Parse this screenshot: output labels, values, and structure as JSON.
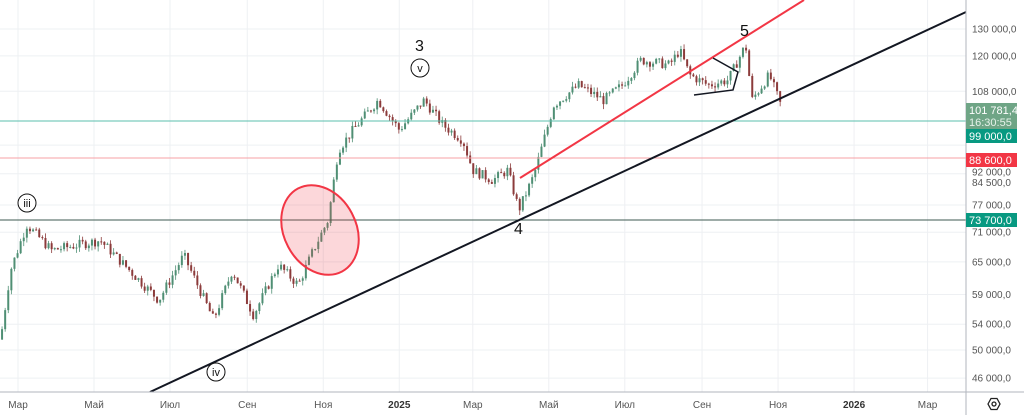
{
  "chart_data": {
    "type": "candlestick",
    "scale": "log",
    "grid": true,
    "ylim": [
      44500,
      140000
    ],
    "x_range": [
      "2024-02-16",
      "2026-04-20"
    ],
    "x_tick_labels": [
      {
        "date": "2024-03-01",
        "label": "Мар"
      },
      {
        "date": "2024-05-01",
        "label": "Май"
      },
      {
        "date": "2024-07-01",
        "label": "Июл"
      },
      {
        "date": "2024-09-01",
        "label": "Сен"
      },
      {
        "date": "2024-11-01",
        "label": "Ноя"
      },
      {
        "date": "2025-01-01",
        "label": "2025",
        "bold": true
      },
      {
        "date": "2025-03-01",
        "label": "Мар"
      },
      {
        "date": "2025-05-01",
        "label": "Май"
      },
      {
        "date": "2025-07-01",
        "label": "Июл"
      },
      {
        "date": "2025-09-01",
        "label": "Сен"
      },
      {
        "date": "2025-11-01",
        "label": "Ноя"
      },
      {
        "date": "2026-01-01",
        "label": "2026",
        "bold": true
      },
      {
        "date": "2026-03-01",
        "label": "Мар"
      }
    ],
    "y_tick_labels": [
      {
        "value": 130000,
        "label": "130 000,0"
      },
      {
        "value": 120000,
        "label": "120 000,0"
      },
      {
        "value": 108000,
        "label": "108 000,0"
      },
      {
        "value": 92000,
        "label": "92 000,0"
      },
      {
        "value": 84500,
        "label": "84 500,0"
      },
      {
        "value": 77000,
        "label": "77 000,0"
      },
      {
        "value": 71000,
        "label": "71 000,0"
      },
      {
        "value": 65000,
        "label": "65 000,0"
      },
      {
        "value": 59000,
        "label": "59 000,0"
      },
      {
        "value": 54000,
        "label": "54 000,0"
      },
      {
        "value": 50000,
        "label": "50 000,0"
      },
      {
        "value": 46000,
        "label": "46 000,0"
      }
    ],
    "price_path": [
      [
        "2024-02-16",
        51600
      ],
      [
        "2024-02-24",
        63400
      ],
      [
        "2024-03-08",
        72600
      ],
      [
        "2024-03-28",
        67300
      ],
      [
        "2024-05-06",
        69300
      ],
      [
        "2024-06-22",
        58000
      ],
      [
        "2024-07-12",
        66300
      ],
      [
        "2024-08-05",
        54700
      ],
      [
        "2024-08-20",
        63400
      ],
      [
        "2024-09-06",
        55500
      ],
      [
        "2024-09-26",
        64400
      ],
      [
        "2024-10-12",
        60700
      ],
      [
        "2024-10-24",
        67300
      ],
      [
        "2024-11-05",
        73700
      ],
      [
        "2024-11-13",
        90700
      ],
      [
        "2024-11-25",
        96300
      ],
      [
        "2024-12-15",
        105200
      ],
      [
        "2025-01-01",
        96300
      ],
      [
        "2025-01-21",
        105200
      ],
      [
        "2025-02-05",
        97700
      ],
      [
        "2025-02-21",
        93400
      ],
      [
        "2025-03-01",
        85400
      ],
      [
        "2025-03-17",
        82900
      ],
      [
        "2025-03-29",
        85400
      ],
      [
        "2025-04-07",
        75900
      ],
      [
        "2025-04-19",
        84100
      ],
      [
        "2025-05-05",
        103700
      ],
      [
        "2025-05-25",
        110000
      ],
      [
        "2025-06-14",
        105200
      ],
      [
        "2025-06-29",
        110000
      ],
      [
        "2025-07-14",
        118500
      ],
      [
        "2025-08-06",
        116800
      ],
      [
        "2025-08-14",
        122100
      ],
      [
        "2025-08-22",
        113400
      ],
      [
        "2025-09-06",
        110000
      ],
      [
        "2025-09-22",
        111700
      ],
      [
        "2025-10-06",
        124000
      ],
      [
        "2025-10-11",
        105200
      ],
      [
        "2025-10-25",
        113400
      ],
      [
        "2025-11-05",
        101781.4
      ]
    ],
    "colors": {
      "up": "#4f8f74",
      "down": "#8c3b3b",
      "grid": "#eef0f3",
      "axis": "#b2b5be"
    },
    "horizontal_levels": [
      {
        "value": 99000,
        "label": "99 000,0",
        "color": "#089981",
        "line_color": "#5bbfae"
      },
      {
        "value": 88600,
        "label": "88 600,0",
        "color": "#f23645",
        "line_color": "#f7a0a6"
      },
      {
        "value": 73700,
        "label": "73 700,0",
        "color": "#089981",
        "line_color": "#3d5a50"
      }
    ],
    "current_price": {
      "value": 101781.4,
      "label": "101 781,4",
      "countdown": "16:30:55",
      "color": "#6fa586"
    },
    "annotations": {
      "wave_labels": [
        "3",
        "4",
        "5"
      ],
      "circled_labels": [
        "iii",
        "iv",
        "v"
      ],
      "trendline_color": "#131722",
      "channel_color": "#f23645",
      "highlight_ellipse_color": "#f23645"
    },
    "settings_icon": "gear-hex-icon"
  }
}
